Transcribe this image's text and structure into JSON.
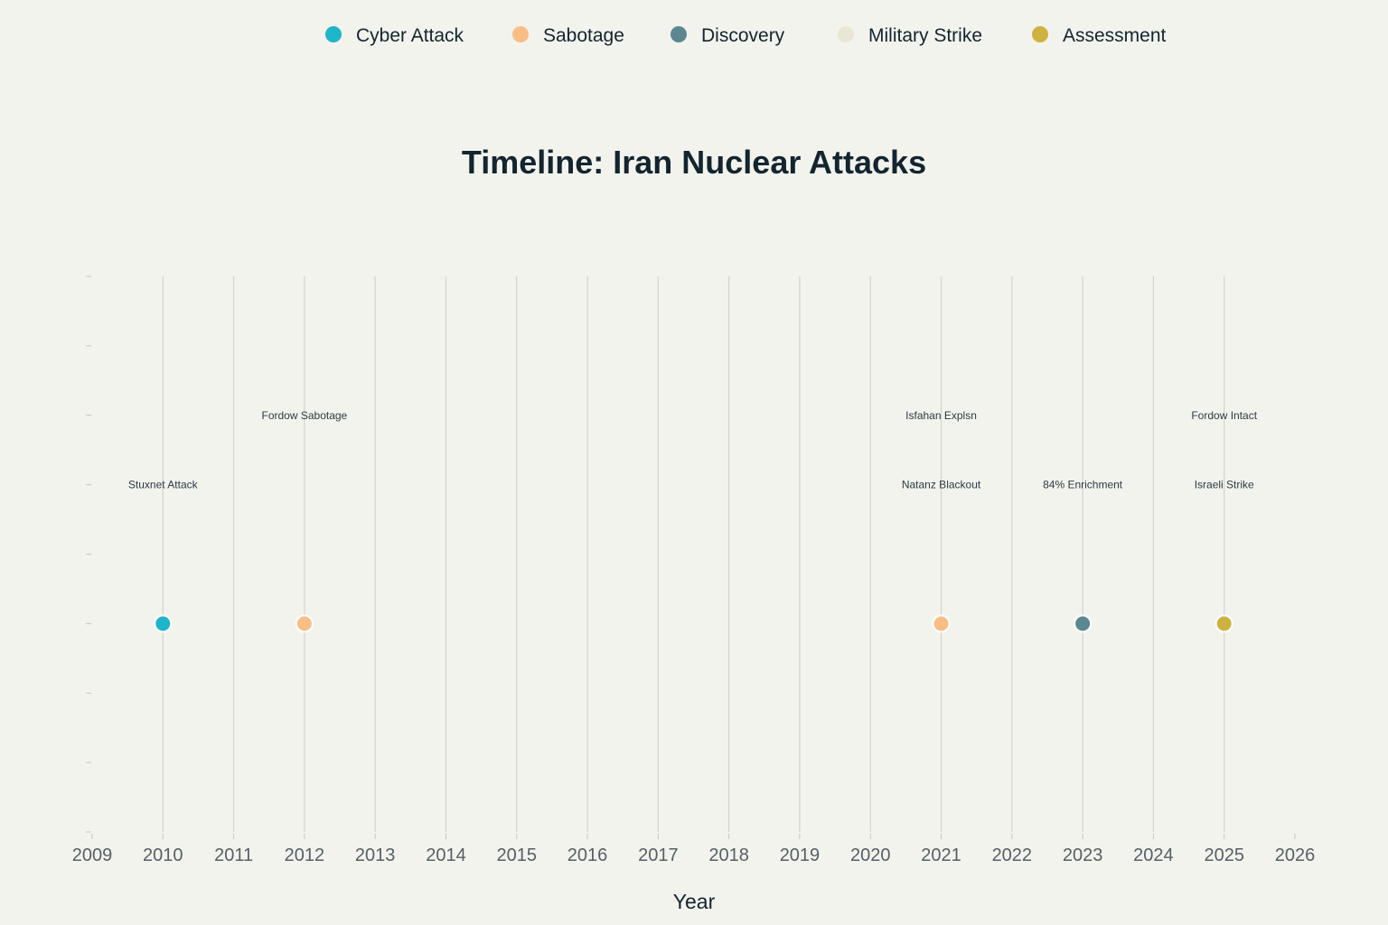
{
  "chart_data": {
    "type": "scatter",
    "title": "Timeline: Iran Nuclear Attacks",
    "xlabel": "Year",
    "ylabel": "",
    "xlim": [
      2009,
      2026
    ],
    "x_ticks": [
      2009,
      2010,
      2011,
      2012,
      2013,
      2014,
      2015,
      2016,
      2017,
      2018,
      2019,
      2020,
      2021,
      2022,
      2023,
      2024,
      2025,
      2026
    ],
    "ylim": [
      0,
      8
    ],
    "y_ticks": [
      0,
      1,
      2,
      3,
      4,
      5,
      6,
      7,
      8
    ],
    "marker_y": 3,
    "grid": "vertical",
    "legend_position": "top-center",
    "legend": [
      {
        "name": "Cyber Attack",
        "color": "#1fb5cb"
      },
      {
        "name": "Sabotage",
        "color": "#f9bd86"
      },
      {
        "name": "Discovery",
        "color": "#5d8790"
      },
      {
        "name": "Military Strike",
        "color": "#e8e7d3"
      },
      {
        "name": "Assessment",
        "color": "#cdb23f"
      }
    ],
    "points": [
      {
        "x": 2010,
        "category": "Cyber Attack"
      },
      {
        "x": 2012,
        "category": "Sabotage"
      },
      {
        "x": 2021,
        "category": "Sabotage"
      },
      {
        "x": 2023,
        "category": "Discovery"
      },
      {
        "x": 2025,
        "category": "Assessment"
      }
    ],
    "annotations": [
      {
        "x": 2010,
        "y": 5,
        "text": "Stuxnet Attack"
      },
      {
        "x": 2012,
        "y": 6,
        "text": "Fordow Sabotage"
      },
      {
        "x": 2021,
        "y": 6,
        "text": "Isfahan Explsn"
      },
      {
        "x": 2021,
        "y": 5,
        "text": "Natanz Blackout"
      },
      {
        "x": 2023,
        "y": 5,
        "text": "84% Enrichment"
      },
      {
        "x": 2025,
        "y": 6,
        "text": "Fordow Intact"
      },
      {
        "x": 2025,
        "y": 5,
        "text": "Israeli Strike"
      }
    ]
  }
}
